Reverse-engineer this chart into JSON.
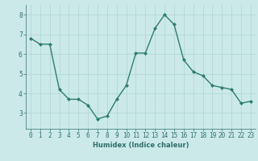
{
  "x": [
    0,
    1,
    2,
    3,
    4,
    5,
    6,
    7,
    8,
    9,
    10,
    11,
    12,
    13,
    14,
    15,
    16,
    17,
    18,
    19,
    20,
    21,
    22,
    23
  ],
  "y": [
    6.8,
    6.5,
    6.5,
    4.2,
    3.7,
    3.7,
    3.4,
    2.7,
    2.85,
    3.7,
    4.4,
    6.05,
    6.05,
    7.3,
    8.0,
    7.5,
    5.7,
    5.1,
    4.9,
    4.4,
    4.3,
    4.2,
    3.5,
    3.6
  ],
  "line_color": "#2e7d6e",
  "marker": "D",
  "marker_size": 2.0,
  "line_width": 1.0,
  "xlabel": "Humidex (Indice chaleur)",
  "xlim": [
    -0.5,
    23.5
  ],
  "ylim": [
    2.2,
    8.5
  ],
  "yticks": [
    3,
    4,
    5,
    6,
    7,
    8
  ],
  "xticks": [
    0,
    1,
    2,
    3,
    4,
    5,
    6,
    7,
    8,
    9,
    10,
    11,
    12,
    13,
    14,
    15,
    16,
    17,
    18,
    19,
    20,
    21,
    22,
    23
  ],
  "xtick_labels": [
    "0",
    "1",
    "2",
    "3",
    "4",
    "5",
    "6",
    "7",
    "8",
    "9",
    "10",
    "11",
    "12",
    "13",
    "14",
    "15",
    "16",
    "17",
    "18",
    "19",
    "20",
    "21",
    "22",
    "23"
  ],
  "bg_color": "#cce9e9",
  "grid_color": "#aad4d4",
  "tick_color": "#2e6e6e",
  "xlabel_fontsize": 6.0,
  "tick_fontsize": 5.5
}
